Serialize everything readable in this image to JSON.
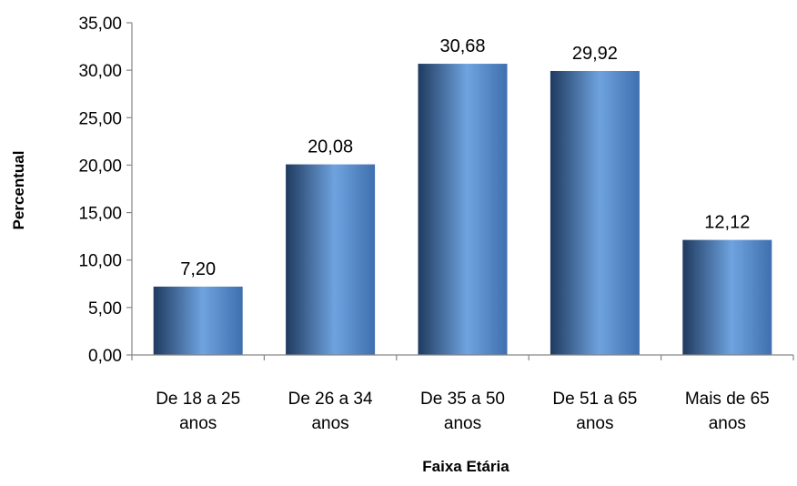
{
  "chart_data": {
    "type": "bar",
    "title": "",
    "xlabel": "Faixa Etária",
    "ylabel": "Percentual",
    "categories": [
      [
        "De 18 a 25",
        "anos"
      ],
      [
        "De 26 a 34",
        "anos"
      ],
      [
        "De 35 a 50",
        "anos"
      ],
      [
        "De 51 a 65",
        "anos"
      ],
      [
        "Mais de 65",
        "anos"
      ]
    ],
    "values": [
      7.2,
      20.08,
      30.68,
      29.92,
      12.12
    ],
    "value_labels": [
      "7,20",
      "20,08",
      "30,68",
      "29,92",
      "12,12"
    ],
    "ylim": [
      0,
      35
    ],
    "yticks": [
      0,
      5,
      10,
      15,
      20,
      25,
      30,
      35
    ],
    "ytick_labels": [
      "0,00",
      "5,00",
      "10,00",
      "15,00",
      "20,00",
      "25,00",
      "30,00",
      "35,00"
    ],
    "grid": false,
    "legend": "none",
    "colors": {
      "bar_dark": "#1f3a5f",
      "bar_mid": "#3f6fae",
      "bar_light": "#6fa3e0",
      "axis": "#868686"
    }
  }
}
